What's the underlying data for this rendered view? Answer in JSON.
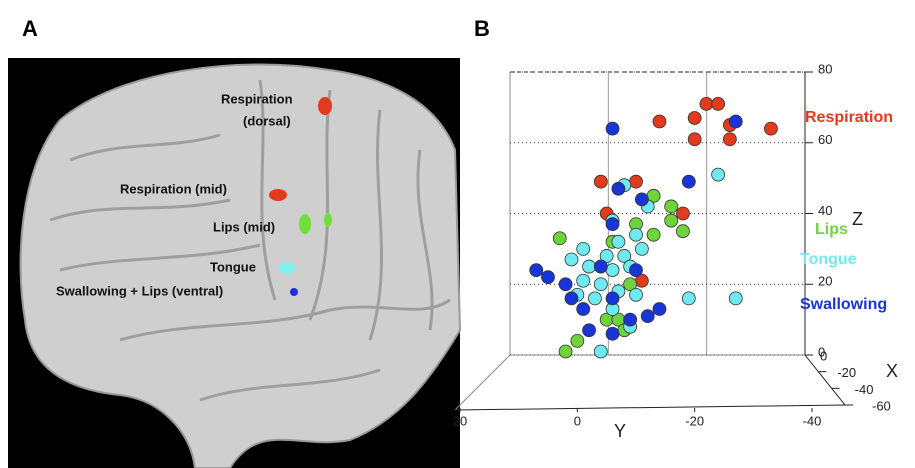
{
  "panel_labels": [
    "A",
    "B"
  ],
  "brain_labels": [
    [
      "Respiration",
      "(dorsal)"
    ],
    [
      "Respiration (mid)"
    ],
    [
      "Lips (mid)"
    ],
    [
      "Tongue"
    ],
    [
      "Swallowing + Lips (ventral)"
    ]
  ],
  "chart_data": {
    "type": "scatter",
    "x_label": "Y",
    "y_label": "Z",
    "depth_label": "X",
    "xlim": [
      20,
      -40
    ],
    "xticks": [
      20,
      0,
      -20,
      -40
    ],
    "ylim": [
      0,
      80
    ],
    "yticks": [
      0,
      20,
      40,
      60,
      80
    ],
    "depth_lim": [
      0,
      -60
    ],
    "depth_ticks": [
      0,
      -20,
      -40,
      -60
    ],
    "series": [
      {
        "name": "Respiration",
        "color": "#e23a1c",
        "x": [
          -22,
          -24,
          -20,
          -26,
          -14,
          -33,
          -20,
          -26,
          -4,
          -10,
          -18,
          -5,
          -11
        ],
        "values": [
          71,
          71,
          67,
          65,
          66,
          64,
          61,
          61,
          49,
          49,
          40,
          40,
          21
        ]
      },
      {
        "name": "Lips",
        "color": "#6fd43a",
        "x": [
          -13,
          -16,
          -6,
          -10,
          -13,
          -16,
          -18,
          3,
          -6,
          -9,
          -5,
          -7,
          2,
          0,
          -8
        ],
        "values": [
          45,
          42,
          38,
          37,
          34,
          38,
          35,
          33,
          32,
          20,
          10,
          10,
          1,
          4,
          7
        ]
      },
      {
        "name": "Tongue",
        "color": "#6eeaf0",
        "x": [
          -24,
          -8,
          -12,
          -6,
          -7,
          -10,
          -1,
          -5,
          -8,
          -11,
          1,
          -2,
          -6,
          -9,
          -1,
          -4,
          -7,
          -10,
          0,
          -3,
          -6,
          -9,
          -4,
          -19,
          -27
        ],
        "values": [
          51,
          48,
          42,
          38,
          32,
          34,
          30,
          28,
          28,
          30,
          27,
          25,
          24,
          25,
          21,
          20,
          18,
          17,
          17,
          16,
          13,
          8,
          1,
          16,
          16
        ]
      },
      {
        "name": "Swallowing",
        "color": "#1a35d6",
        "x": [
          -6,
          -27,
          -19,
          -7,
          -11,
          -6,
          7,
          5,
          2,
          1,
          -4,
          -10,
          -1,
          -6,
          -12,
          -14,
          -2,
          -6,
          -9
        ],
        "values": [
          64,
          66,
          49,
          47,
          44,
          37,
          24,
          22,
          20,
          16,
          25,
          24,
          13,
          16,
          11,
          13,
          7,
          6,
          10
        ]
      }
    ]
  }
}
